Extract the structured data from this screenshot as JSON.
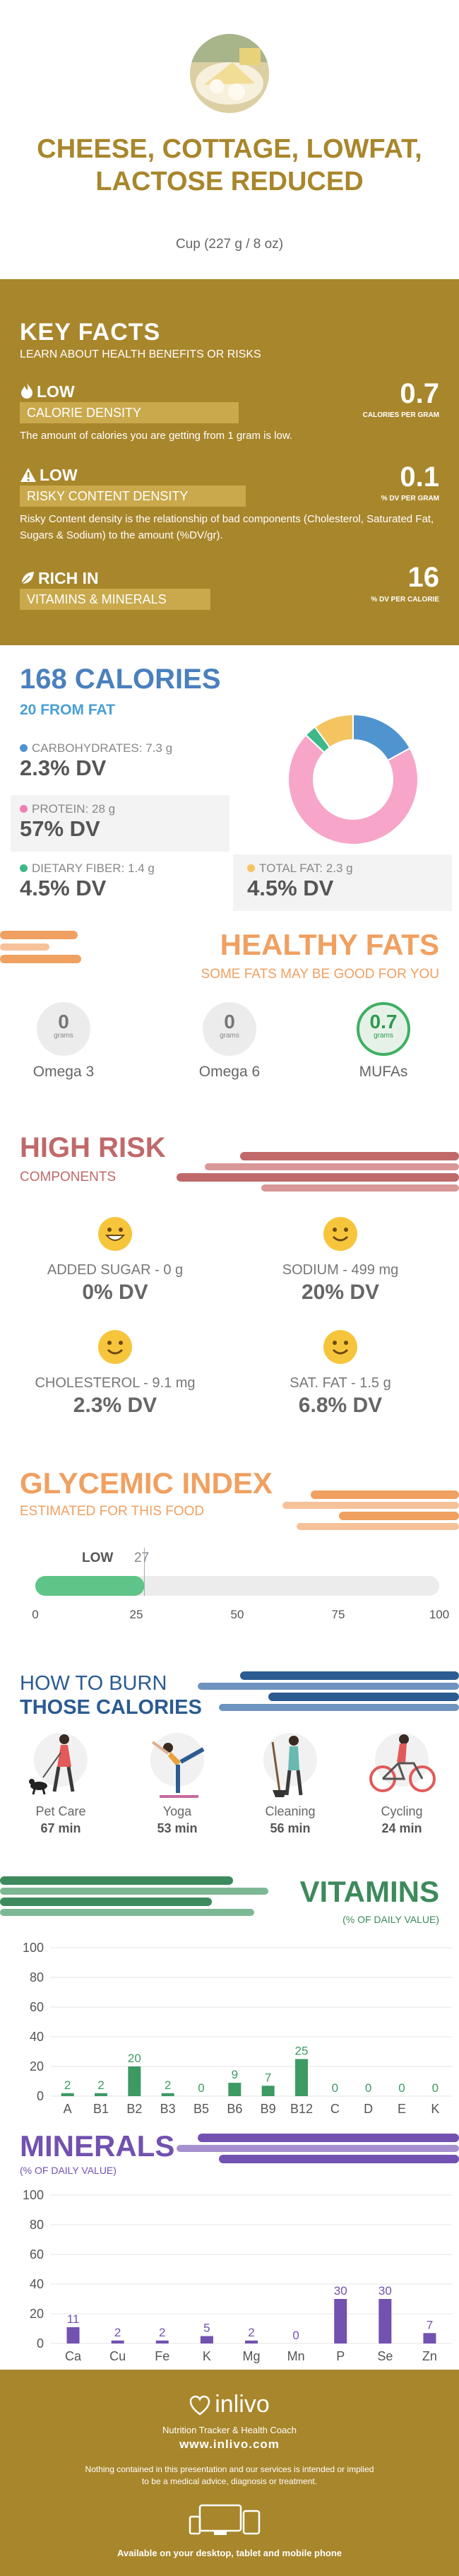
{
  "header": {
    "title": "CHEESE, COTTAGE, LOWFAT, LACTOSE REDUCED",
    "serving": "Cup (227 g / 8 oz)"
  },
  "key_facts": {
    "title": "KEY FACTS",
    "subtitle": "LEARN ABOUT HEALTH BENEFITS OR RISKS",
    "items": [
      {
        "level": "LOW",
        "bar": "CALORIE DENSITY",
        "desc": "The amount of calories you are getting from 1 gram is low.",
        "value": "0.7",
        "unit": "CALORIES PER GRAM",
        "icon": "flame-icon"
      },
      {
        "level": "LOW",
        "bar": "RISKY CONTENT DENSITY",
        "desc": "Risky Content density is the relationship of bad components (Cholesterol, Saturated Fat, Sugars & Sodium) to the amount (%DV/gr).",
        "value": "0.1",
        "unit": "% DV PER GRAM",
        "icon": "warning-icon"
      },
      {
        "level": "RICH  IN",
        "bar": "VITAMINS & MINERALS",
        "desc": "",
        "value": "16",
        "unit": "% DV PER CALORIE",
        "icon": "leaf-icon"
      }
    ]
  },
  "calories": {
    "title": "168 CALORIES",
    "from_fat": "20 FROM FAT",
    "nutrients": [
      {
        "label": "CARBOHYDRATES: 7.3 g",
        "dv": "2.3% DV",
        "color": "#4f93cf"
      },
      {
        "label": "PROTEIN: 28 g",
        "dv": "57% DV",
        "color": "#f07fb0"
      },
      {
        "label": "DIETARY FIBER: 1.4 g",
        "dv": "4.5% DV",
        "color": "#3fb889"
      },
      {
        "label": "TOTAL FAT: 2.3 g",
        "dv": "4.5% DV",
        "color": "#f4c460"
      }
    ],
    "donut": [
      {
        "name": "carbohydrates",
        "value": 17,
        "color": "#4f93cf"
      },
      {
        "name": "protein",
        "value": 70,
        "color": "#f7a5c9"
      },
      {
        "name": "fiber",
        "value": 3,
        "color": "#3fb889"
      },
      {
        "name": "fat",
        "value": 10,
        "color": "#f4c460"
      }
    ]
  },
  "healthy_fats": {
    "title": "HEALTHY FATS",
    "subtitle": "SOME FATS MAY BE GOOD FOR YOU",
    "items": [
      {
        "name": "Omega 3",
        "value": "0",
        "unit": "grams",
        "highlight": false
      },
      {
        "name": "Omega 6",
        "value": "0",
        "unit": "grams",
        "highlight": false
      },
      {
        "name": "MUFAs",
        "value": "0.7",
        "unit": "grams",
        "highlight": true
      }
    ]
  },
  "high_risk": {
    "title": "HIGH RISK",
    "subtitle": "COMPONENTS",
    "items": [
      {
        "name": "ADDED SUGAR - 0 g",
        "dv": "0% DV",
        "face": "grin-face-icon"
      },
      {
        "name": "SODIUM - 499 mg",
        "dv": "20% DV",
        "face": "smile-face-icon"
      },
      {
        "name": "CHOLESTEROL - 9.1 mg",
        "dv": "2.3% DV",
        "face": "smile-face-icon"
      },
      {
        "name": "SAT. FAT - 1.5 g",
        "dv": "6.8% DV",
        "face": "smile-face-icon"
      }
    ]
  },
  "glycemic": {
    "title": "GLYCEMIC INDEX",
    "subtitle": "ESTIMATED FOR THIS FOOD",
    "level": "LOW",
    "value": 27,
    "value_label": "27",
    "ticks": [
      "0",
      "25",
      "50",
      "75",
      "100"
    ]
  },
  "burn": {
    "title_line1": "HOW TO BURN",
    "title_line2": "THOSE CALORIES",
    "activities": [
      {
        "name": "Pet Care",
        "minutes": "67 min",
        "icon": "dog-walking-icon"
      },
      {
        "name": "Yoga",
        "minutes": "53 min",
        "icon": "yoga-icon"
      },
      {
        "name": "Cleaning",
        "minutes": "56 min",
        "icon": "broom-icon"
      },
      {
        "name": "Cycling",
        "minutes": "24 min",
        "icon": "bicycle-icon"
      }
    ]
  },
  "vitamins": {
    "title": "VITAMINS",
    "subtitle": "(% OF DAILY VALUE)"
  },
  "minerals": {
    "title": "MINERALS",
    "subtitle": "(% OF DAILY VALUE)"
  },
  "chart_data": [
    {
      "type": "bar",
      "categories": [
        "A",
        "B1",
        "B2",
        "B3",
        "B5",
        "B6",
        "B9",
        "B12",
        "C",
        "D",
        "E",
        "K"
      ],
      "values": [
        2,
        2,
        20,
        2,
        0,
        9,
        7,
        25,
        0,
        0,
        0,
        0
      ],
      "value_labels": [
        "2",
        "2",
        "20",
        "2",
        "0",
        "9",
        "7",
        "25",
        "0",
        "0",
        "0",
        "0"
      ],
      "title": "VITAMINS",
      "ylabel": "",
      "ylim": [
        0,
        100
      ],
      "yticks": [
        "0",
        "20",
        "40",
        "60",
        "80",
        "100"
      ],
      "color": "#3d9a63",
      "grid": true
    },
    {
      "type": "bar",
      "categories": [
        "Ca",
        "Cu",
        "Fe",
        "K",
        "Mg",
        "Mn",
        "P",
        "Se",
        "Zn"
      ],
      "values": [
        11,
        2,
        2,
        5,
        2,
        0,
        30,
        30,
        7
      ],
      "value_labels": [
        "11",
        "2",
        "2",
        "5",
        "2",
        "0",
        "30",
        "30",
        "7"
      ],
      "title": "MINERALS",
      "ylabel": "",
      "ylim": [
        0,
        100
      ],
      "yticks": [
        "0",
        "20",
        "40",
        "60",
        "80",
        "100"
      ],
      "color": "#7251b0",
      "grid": true
    }
  ],
  "footer": {
    "brand": "inlivo",
    "tagline": "Nutrition Tracker & Health Coach",
    "url": "www.inlivo.com",
    "disclaimer_line1": "Nothing contained in this presentation and our services is intended or implied",
    "disclaimer_line2": "to be a medical advice, diagnosis or treatment.",
    "devices": "Available on your desktop, tablet and mobile phone"
  }
}
